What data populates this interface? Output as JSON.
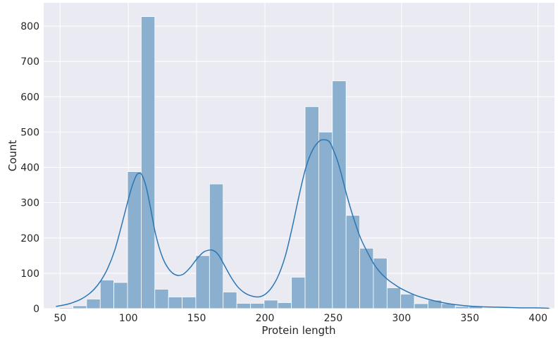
{
  "chart_data": {
    "type": "bar",
    "subtype": "histogram-with-kde",
    "title": "",
    "xlabel": "Protein length",
    "ylabel": "Count",
    "xlim": [
      38,
      412
    ],
    "ylim": [
      0,
      866
    ],
    "xticks": [
      50,
      100,
      150,
      200,
      250,
      300,
      350,
      400
    ],
    "yticks": [
      0,
      100,
      200,
      300,
      400,
      500,
      600,
      700,
      800
    ],
    "grid": true,
    "bar_color": "#8aafcf",
    "bar_edge_color": "#ffffff",
    "line_color": "#2b76b3",
    "background_color": "#eaeaf2",
    "bins": [
      {
        "x0": 49.4,
        "x1": 59.4,
        "count": 3
      },
      {
        "x0": 59.4,
        "x1": 69.4,
        "count": 8
      },
      {
        "x0": 69.4,
        "x1": 79.4,
        "count": 27
      },
      {
        "x0": 79.4,
        "x1": 89.4,
        "count": 81
      },
      {
        "x0": 89.4,
        "x1": 99.4,
        "count": 74
      },
      {
        "x0": 99.4,
        "x1": 109.4,
        "count": 388
      },
      {
        "x0": 109.4,
        "x1": 119.4,
        "count": 827
      },
      {
        "x0": 119.4,
        "x1": 129.4,
        "count": 55
      },
      {
        "x0": 129.4,
        "x1": 139.4,
        "count": 33
      },
      {
        "x0": 139.4,
        "x1": 149.4,
        "count": 33
      },
      {
        "x0": 149.4,
        "x1": 159.4,
        "count": 150
      },
      {
        "x0": 159.4,
        "x1": 169.4,
        "count": 353
      },
      {
        "x0": 169.4,
        "x1": 179.4,
        "count": 47
      },
      {
        "x0": 179.4,
        "x1": 189.4,
        "count": 15
      },
      {
        "x0": 189.4,
        "x1": 199.4,
        "count": 15
      },
      {
        "x0": 199.4,
        "x1": 209.4,
        "count": 24
      },
      {
        "x0": 209.4,
        "x1": 219.4,
        "count": 17
      },
      {
        "x0": 219.4,
        "x1": 229.4,
        "count": 89
      },
      {
        "x0": 229.4,
        "x1": 239.4,
        "count": 572
      },
      {
        "x0": 239.4,
        "x1": 249.4,
        "count": 500
      },
      {
        "x0": 249.4,
        "x1": 259.4,
        "count": 645
      },
      {
        "x0": 259.4,
        "x1": 269.4,
        "count": 264
      },
      {
        "x0": 269.4,
        "x1": 279.4,
        "count": 171
      },
      {
        "x0": 279.4,
        "x1": 289.4,
        "count": 143
      },
      {
        "x0": 289.4,
        "x1": 299.4,
        "count": 59
      },
      {
        "x0": 299.4,
        "x1": 309.4,
        "count": 41
      },
      {
        "x0": 309.4,
        "x1": 319.4,
        "count": 14
      },
      {
        "x0": 319.4,
        "x1": 329.4,
        "count": 24
      },
      {
        "x0": 329.4,
        "x1": 339.4,
        "count": 14
      },
      {
        "x0": 339.4,
        "x1": 349.4,
        "count": 6
      },
      {
        "x0": 349.4,
        "x1": 359.4,
        "count": 6
      },
      {
        "x0": 359.4,
        "x1": 369.4,
        "count": 2
      },
      {
        "x0": 369.4,
        "x1": 379.4,
        "count": 2
      },
      {
        "x0": 379.4,
        "x1": 389.4,
        "count": 1
      },
      {
        "x0": 389.4,
        "x1": 399.4,
        "count": 1
      },
      {
        "x0": 399.4,
        "x1": 409.4,
        "count": 3
      }
    ],
    "kde": {
      "x": [
        47,
        55,
        60,
        65,
        70,
        75,
        80,
        85,
        90,
        95,
        100,
        103,
        106,
        108,
        110,
        113,
        116,
        120,
        125,
        130,
        135,
        140,
        145,
        150,
        155,
        160,
        163,
        166,
        170,
        175,
        180,
        185,
        190,
        195,
        200,
        205,
        210,
        215,
        220,
        225,
        230,
        235,
        240,
        243,
        246,
        248,
        250,
        253,
        256,
        260,
        265,
        270,
        275,
        280,
        285,
        290,
        295,
        300,
        310,
        320,
        330,
        340,
        350,
        360,
        370,
        380,
        390,
        400,
        408
      ],
      "y": [
        6,
        12,
        18,
        26,
        38,
        55,
        80,
        115,
        165,
        235,
        310,
        350,
        378,
        383,
        378,
        345,
        290,
        210,
        145,
        110,
        95,
        97,
        115,
        140,
        160,
        166,
        163,
        152,
        125,
        90,
        62,
        45,
        36,
        33,
        40,
        60,
        95,
        150,
        230,
        320,
        400,
        450,
        475,
        478,
        476,
        468,
        450,
        420,
        380,
        320,
        255,
        200,
        160,
        125,
        100,
        82,
        68,
        56,
        38,
        26,
        17,
        11,
        7,
        5,
        4,
        3,
        2,
        2,
        1
      ]
    }
  }
}
